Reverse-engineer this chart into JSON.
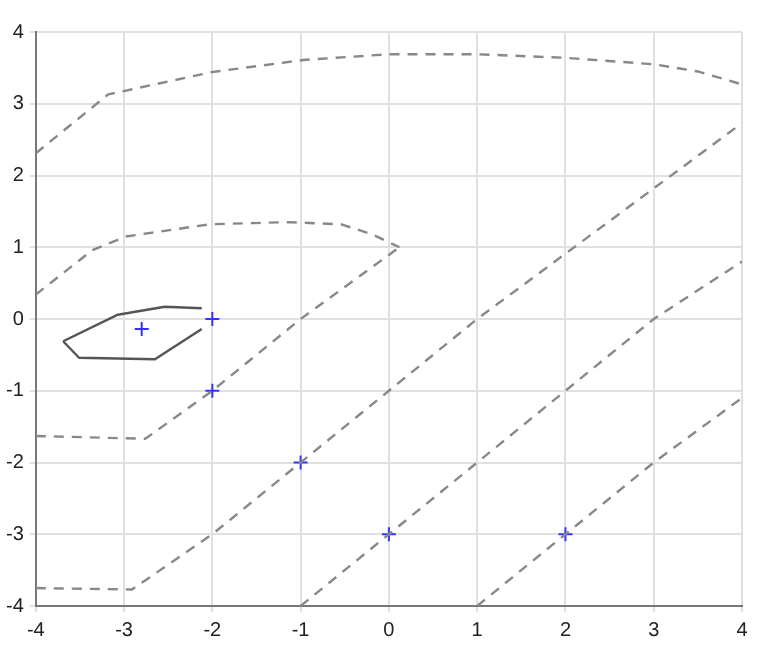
{
  "chart_data": {
    "type": "line",
    "xlim": [
      -4,
      4
    ],
    "ylim": [
      -4,
      4
    ],
    "xticks": [
      -4,
      -3,
      -2,
      -1,
      0,
      1,
      2,
      3,
      4
    ],
    "yticks": [
      -4,
      -3,
      -2,
      -1,
      0,
      1,
      2,
      3,
      4
    ],
    "grid": true,
    "legend": false,
    "marker": "none",
    "series": [
      {
        "line_style": "dashed",
        "color": "#888888",
        "x": [
          -4,
          -3.18,
          -2.01,
          -0.97,
          0,
          1,
          2,
          3,
          3.5,
          4
        ],
        "values": [
          2.31,
          3.13,
          3.44,
          3.61,
          3.69,
          3.69,
          3.64,
          3.55,
          3.45,
          3.27
        ]
      },
      {
        "line_style": "dashed",
        "color": "#888888",
        "x": [
          -4,
          -3.36,
          -2.98,
          -2.03,
          -1.14,
          -0.54,
          -0.19,
          0.12
        ],
        "values": [
          0.34,
          0.96,
          1.15,
          1.32,
          1.35,
          1.32,
          1.18,
          1.0
        ]
      },
      {
        "line_style": "dashed",
        "color": "#888888",
        "x": [
          -4,
          -2.76,
          -2,
          -1,
          0.12
        ],
        "values": [
          -1.63,
          -1.67,
          -1,
          0,
          1.0
        ]
      },
      {
        "line_style": "dashed",
        "color": "#888888",
        "x": [
          -4,
          -2.91,
          -2,
          -1,
          0,
          1,
          4
        ],
        "values": [
          -3.75,
          -3.77,
          -3,
          -2,
          -1,
          0,
          2.73
        ]
      },
      {
        "line_style": "dashed",
        "color": "#888888",
        "x": [
          -1,
          0,
          1,
          2,
          3,
          4
        ],
        "values": [
          -4,
          -3,
          -2,
          -1,
          0,
          0.8
        ]
      },
      {
        "line_style": "dashed",
        "color": "#888888",
        "x": [
          1,
          2,
          3,
          4
        ],
        "values": [
          -4,
          -3,
          -2,
          -1.1
        ]
      },
      {
        "line_style": "solid",
        "color": "#555555",
        "x": [
          -3.69,
          -3.07,
          -2.54,
          -2.12
        ],
        "values": [
          -0.31,
          0.06,
          0.17,
          0.15
        ]
      },
      {
        "line_style": "solid",
        "color": "#555555",
        "x": [
          -3.69,
          -3.51,
          -2.65,
          -2.12
        ],
        "values": [
          -0.31,
          -0.54,
          -0.56,
          -0.14
        ]
      },
      {
        "type": "scatter",
        "marker": "cross",
        "color": "#3333ff",
        "x": [
          -2.8,
          -2,
          -2,
          -1,
          0,
          2
        ],
        "values": [
          -0.14,
          0,
          -1,
          -2,
          -3,
          -3
        ]
      }
    ]
  }
}
